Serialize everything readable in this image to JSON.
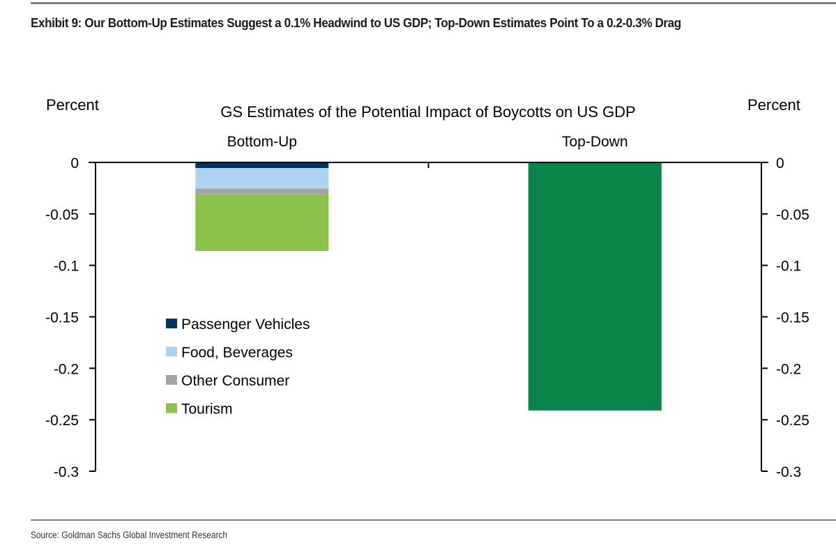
{
  "exhibit": {
    "title": "Exhibit 9: Our Bottom-Up Estimates Suggest a 0.1% Headwind to US GDP; Top-Down Estimates Point To a 0.2-0.3% Drag",
    "source": "Source: Goldman Sachs Global Investment Research"
  },
  "chart_data": {
    "type": "bar",
    "stacked": true,
    "title": "GS Estimates of the Potential Impact of Boycotts on US GDP",
    "ylabel_left": "Percent",
    "ylabel_right": "Percent",
    "categories": [
      "Bottom-Up",
      "Top-Down"
    ],
    "ylim": [
      -0.3,
      0
    ],
    "yticks": [
      0,
      -0.05,
      -0.1,
      -0.15,
      -0.2,
      -0.25,
      -0.3
    ],
    "ytick_labels": [
      "0",
      "-0.05",
      "-0.1",
      "-0.15",
      "-0.2",
      "-0.25",
      "-0.3"
    ],
    "grid": false,
    "legend_position": "lower-left inside plot",
    "series": [
      {
        "name": "Passenger Vehicles",
        "color": "#04335f",
        "values": [
          -0.0055,
          null
        ]
      },
      {
        "name": "Food, Beverages",
        "color": "#acd3f0",
        "values": [
          -0.02,
          null
        ]
      },
      {
        "name": "Other Consumer",
        "color": "#a3a3a3",
        "values": [
          -0.0055,
          null
        ]
      },
      {
        "name": "Tourism",
        "color": "#8bc34a",
        "values": [
          -0.055,
          null
        ]
      },
      {
        "name": "Top-Down",
        "color": "#0a854a",
        "values": [
          null,
          -0.241
        ],
        "in_legend": false
      }
    ]
  }
}
